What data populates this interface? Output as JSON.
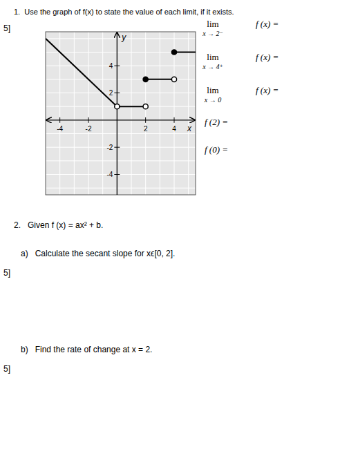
{
  "chart_data": {
    "type": "line",
    "title": "1.  Use the graph of f(x) to state the value of each limit, if it exists.",
    "xlabel": "x",
    "ylabel": "y",
    "xlim": [
      -5,
      5.5
    ],
    "ylim": [
      -5.5,
      6.5
    ],
    "xticks": [
      -4,
      -2,
      2,
      4
    ],
    "yticks": [
      -4,
      -2,
      2,
      4
    ],
    "grid": true,
    "color": "black",
    "series": [
      {
        "x": [
          -5,
          0
        ],
        "values": [
          6,
          1
        ]
      },
      {
        "x": [
          0,
          2
        ],
        "values": [
          1,
          1
        ]
      },
      {
        "x": [
          2,
          4
        ],
        "values": [
          3,
          3
        ]
      },
      {
        "x": [
          4,
          5.5
        ],
        "values": [
          5,
          5
        ]
      },
      {
        "type": "scatter",
        "marker": "open-circle",
        "x": [
          0,
          2,
          4
        ],
        "values": [
          1,
          1,
          3
        ]
      },
      {
        "type": "scatter",
        "marker": "filled-circle",
        "x": [
          2,
          4
        ],
        "values": [
          3,
          5
        ]
      }
    ],
    "annotations": {
      "marks": [
        "5]"
      ],
      "limits": [
        [
          "lim",
          "x → 2⁻",
          "f (x) ="
        ],
        [
          "lim",
          "x → 4⁺",
          "f (x) ="
        ],
        [
          "lim",
          "x → 0",
          "f (x) ="
        ],
        [
          "f (2) ="
        ],
        [
          "f (0) ="
        ]
      ],
      "question_2": [
        "2.   Given f (x) = ax² + b.",
        "a)   Calculate the secant slope for xϵ[0, 2].",
        "5]",
        "b)   Find the rate of change at x = 2.",
        "5]"
      ]
    }
  }
}
